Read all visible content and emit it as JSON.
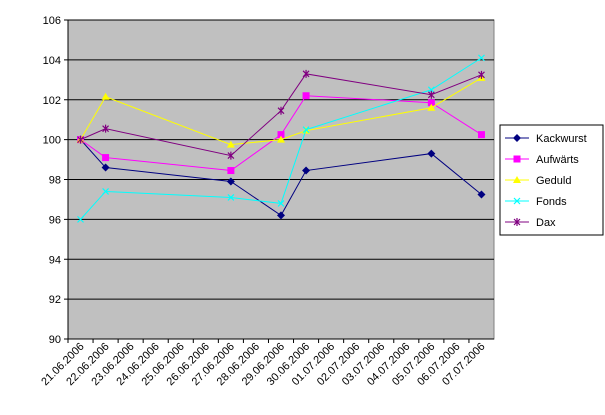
{
  "chart_data": {
    "type": "line",
    "categories": [
      "21.06.2006",
      "22.06.2006",
      "23.06.2006",
      "24.06.2006",
      "25.06.2006",
      "26.06.2006",
      "27.06.2006",
      "28.06.2006",
      "29.06.2006",
      "30.06.2006",
      "01.07.2006",
      "02.07.2006",
      "03.07.2006",
      "04.07.2006",
      "05.07.2006",
      "06.07.2006",
      "07.07.2006"
    ],
    "x": [
      "21.06.2006",
      "22.06.2006",
      "27.06.2006",
      "29.06.2006",
      "30.06.2006",
      "05.07.2006",
      "07.07.2006"
    ],
    "series": [
      {
        "name": "Kackwurst",
        "color": "#000080",
        "marker": "diamond",
        "values": [
          100,
          98.6,
          97.9,
          96.2,
          98.45,
          99.3,
          97.25
        ]
      },
      {
        "name": "Aufwärts",
        "color": "#ff00ff",
        "marker": "square",
        "values": [
          100,
          99.1,
          98.45,
          100.25,
          102.2,
          101.85,
          100.25
        ]
      },
      {
        "name": "Geduld",
        "color": "#ffff00",
        "marker": "triangle",
        "values": [
          100,
          102.15,
          99.75,
          100,
          100.45,
          101.6,
          103.1
        ]
      },
      {
        "name": "Fonds",
        "color": "#00ffff",
        "marker": "x",
        "values": [
          96,
          97.4,
          97.1,
          96.8,
          100.5,
          102.5,
          104.1
        ]
      },
      {
        "name": "Dax",
        "color": "#800080",
        "marker": "star",
        "values": [
          100,
          100.55,
          99.2,
          101.45,
          103.3,
          102.25,
          103.25
        ]
      }
    ],
    "ylim": [
      90,
      106
    ],
    "yticks": [
      90,
      92,
      94,
      96,
      98,
      100,
      102,
      104,
      106
    ],
    "grid": true,
    "legend": "right"
  }
}
